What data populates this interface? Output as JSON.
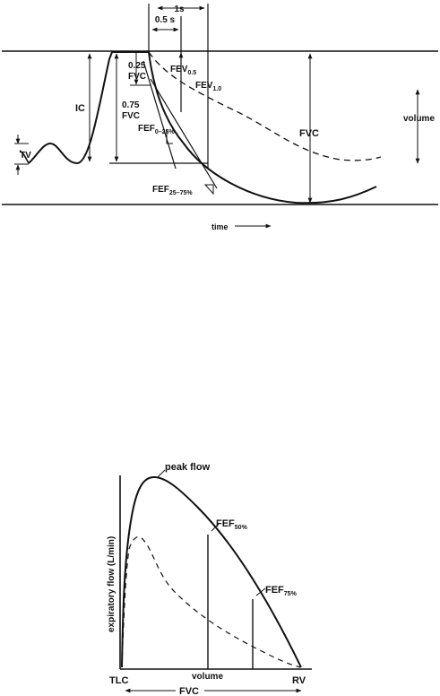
{
  "top_diagram": {
    "labels": {
      "one_s": "1s",
      "half_s": "0.5 s",
      "quarter_fvc_num": "0.25",
      "quarter_fvc_unit": "FVC",
      "three_quarter_fvc_num": "0.75",
      "three_quarter_fvc_unit": "FVC",
      "ic": "IC",
      "tv": "TV",
      "fev_half_main": "FEV",
      "fev_half_sub": "0.5",
      "fev_one_main": "FEV",
      "fev_one_sub": "1.0",
      "fef_0_25_main": "FEF",
      "fef_0_25_sub": "0–25%",
      "fef_25_75_main": "FEF",
      "fef_25_75_sub": "25–75%",
      "fvc": "FVC",
      "volume": "volume",
      "time": "time"
    }
  },
  "bottom_diagram": {
    "labels": {
      "peak_flow": "peak flow",
      "ylabel": "expiratory flow (L/min)",
      "fef50_main": "FEF",
      "fef50_sub": "50%",
      "fef75_main": "FEF",
      "fef75_sub": "75%",
      "tlc": "TLC",
      "xlabel": "volume",
      "rv": "RV",
      "fvc": "FVC"
    }
  }
}
